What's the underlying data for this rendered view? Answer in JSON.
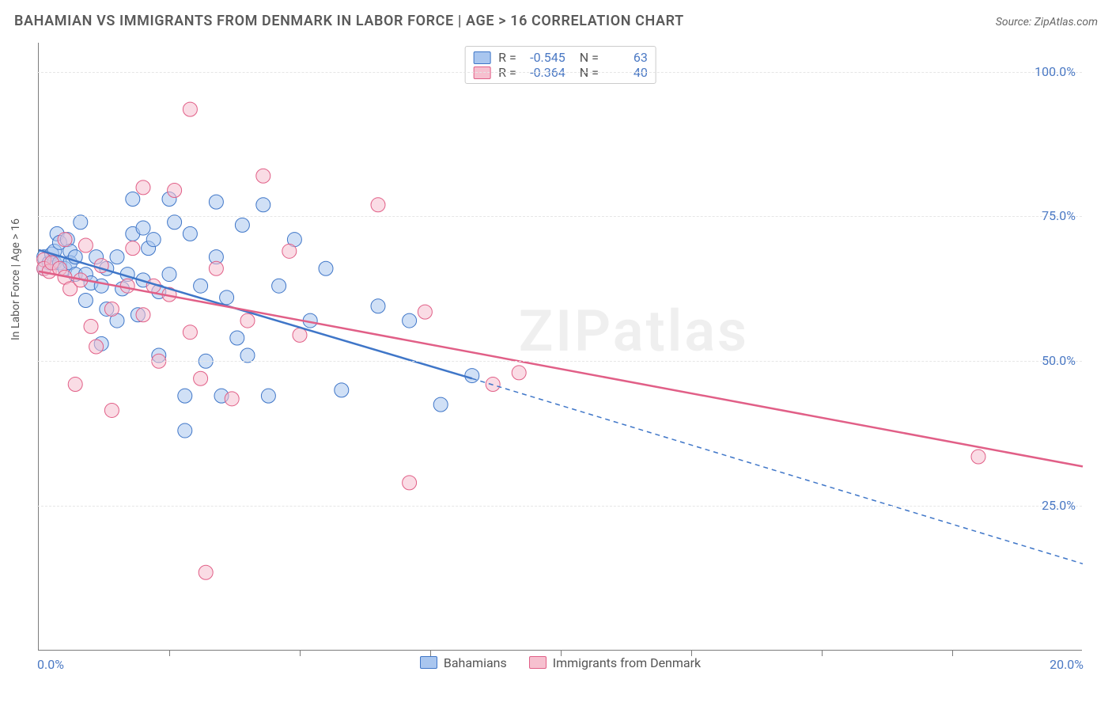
{
  "header": {
    "title": "BAHAMIAN VS IMMIGRANTS FROM DENMARK IN LABOR FORCE | AGE > 16 CORRELATION CHART",
    "source_label": "Source: ZipAtlas.com"
  },
  "watermark": "ZIPatlas",
  "chart": {
    "type": "scatter",
    "background_color": "#ffffff",
    "axis_color": "#7c7c7c",
    "grid_color": "#e6e6e6",
    "text_color": "#555555",
    "value_color": "#4b79c4",
    "ylabel": "In Labor Force | Age > 16",
    "xlim": [
      0,
      20
    ],
    "ylim": [
      0,
      105
    ],
    "yticks": [
      {
        "v": 25,
        "label": "25.0%"
      },
      {
        "v": 50,
        "label": "50.0%"
      },
      {
        "v": 75,
        "label": "75.0%"
      },
      {
        "v": 100,
        "label": "100.0%"
      }
    ],
    "xtick_major": [
      0,
      20
    ],
    "xtick_labels": {
      "min": "0.0%",
      "max": "20.0%"
    },
    "xtick_minor_step": 2.5,
    "marker_radius": 9,
    "marker_opacity": 0.55,
    "series": [
      {
        "key": "bahamians",
        "label": "Bahamians",
        "fill": "#a9c6ef",
        "stroke": "#3f76c8",
        "R": -0.545,
        "N": 63,
        "points": [
          [
            0.1,
            68
          ],
          [
            0.1,
            66
          ],
          [
            0.2,
            67
          ],
          [
            0.25,
            68.5
          ],
          [
            0.3,
            69
          ],
          [
            0.3,
            67
          ],
          [
            0.35,
            72
          ],
          [
            0.4,
            67
          ],
          [
            0.4,
            70.5
          ],
          [
            0.5,
            66
          ],
          [
            0.55,
            71
          ],
          [
            0.6,
            69
          ],
          [
            0.6,
            67
          ],
          [
            0.7,
            68
          ],
          [
            0.7,
            65
          ],
          [
            0.8,
            74
          ],
          [
            0.9,
            65
          ],
          [
            0.9,
            60.5
          ],
          [
            1.0,
            63.5
          ],
          [
            1.1,
            68
          ],
          [
            1.2,
            63
          ],
          [
            1.2,
            53
          ],
          [
            1.3,
            66
          ],
          [
            1.3,
            59
          ],
          [
            1.5,
            68
          ],
          [
            1.5,
            57
          ],
          [
            1.6,
            62.5
          ],
          [
            1.7,
            65
          ],
          [
            1.8,
            78
          ],
          [
            1.8,
            72
          ],
          [
            1.9,
            58
          ],
          [
            2.0,
            64
          ],
          [
            2.0,
            73
          ],
          [
            2.1,
            69.5
          ],
          [
            2.2,
            71
          ],
          [
            2.3,
            62
          ],
          [
            2.3,
            51
          ],
          [
            2.5,
            78
          ],
          [
            2.5,
            65
          ],
          [
            2.6,
            74
          ],
          [
            2.8,
            44
          ],
          [
            2.8,
            38
          ],
          [
            2.9,
            72
          ],
          [
            3.1,
            63
          ],
          [
            3.2,
            50
          ],
          [
            3.4,
            77.5
          ],
          [
            3.4,
            68
          ],
          [
            3.5,
            44
          ],
          [
            3.6,
            61
          ],
          [
            3.8,
            54
          ],
          [
            3.9,
            73.5
          ],
          [
            4.0,
            51
          ],
          [
            4.3,
            77
          ],
          [
            4.4,
            44
          ],
          [
            4.6,
            63
          ],
          [
            4.9,
            71
          ],
          [
            5.2,
            57
          ],
          [
            5.5,
            66
          ],
          [
            5.8,
            45
          ],
          [
            6.5,
            59.5
          ],
          [
            7.1,
            57
          ],
          [
            7.7,
            42.5
          ],
          [
            8.3,
            47.5
          ]
        ],
        "trend": {
          "x1": 0,
          "y1": 69.2,
          "x2": 8.3,
          "y2": 47,
          "x2_dash": 20,
          "y2_dash": 15,
          "width": 2.5
        }
      },
      {
        "key": "denmark",
        "label": "Immigrants from Denmark",
        "fill": "#f6c0cf",
        "stroke": "#e15f87",
        "R": -0.364,
        "N": 40,
        "points": [
          [
            0.1,
            67.5
          ],
          [
            0.1,
            66
          ],
          [
            0.2,
            65.5
          ],
          [
            0.25,
            67
          ],
          [
            0.4,
            66
          ],
          [
            0.5,
            64.5
          ],
          [
            0.5,
            71
          ],
          [
            0.6,
            62.5
          ],
          [
            0.7,
            46
          ],
          [
            0.8,
            64
          ],
          [
            0.9,
            70
          ],
          [
            1.0,
            56
          ],
          [
            1.1,
            52.5
          ],
          [
            1.2,
            66.5
          ],
          [
            1.4,
            59
          ],
          [
            1.4,
            41.5
          ],
          [
            1.7,
            63
          ],
          [
            1.8,
            69.5
          ],
          [
            2.0,
            80
          ],
          [
            2.0,
            58
          ],
          [
            2.2,
            63
          ],
          [
            2.3,
            50
          ],
          [
            2.5,
            61.5
          ],
          [
            2.6,
            79.5
          ],
          [
            2.9,
            93.5
          ],
          [
            2.9,
            55
          ],
          [
            3.1,
            47
          ],
          [
            3.2,
            13.5
          ],
          [
            3.4,
            66
          ],
          [
            3.7,
            43.5
          ],
          [
            4.0,
            57
          ],
          [
            4.3,
            82
          ],
          [
            4.8,
            69
          ],
          [
            5.0,
            54.5
          ],
          [
            6.5,
            77
          ],
          [
            7.1,
            29
          ],
          [
            7.4,
            58.5
          ],
          [
            8.7,
            46
          ],
          [
            9.2,
            48
          ],
          [
            18.0,
            33.5
          ]
        ],
        "trend": {
          "x1": 0,
          "y1": 65.5,
          "x2": 20,
          "y2": 31.8,
          "width": 2.5
        }
      }
    ]
  }
}
